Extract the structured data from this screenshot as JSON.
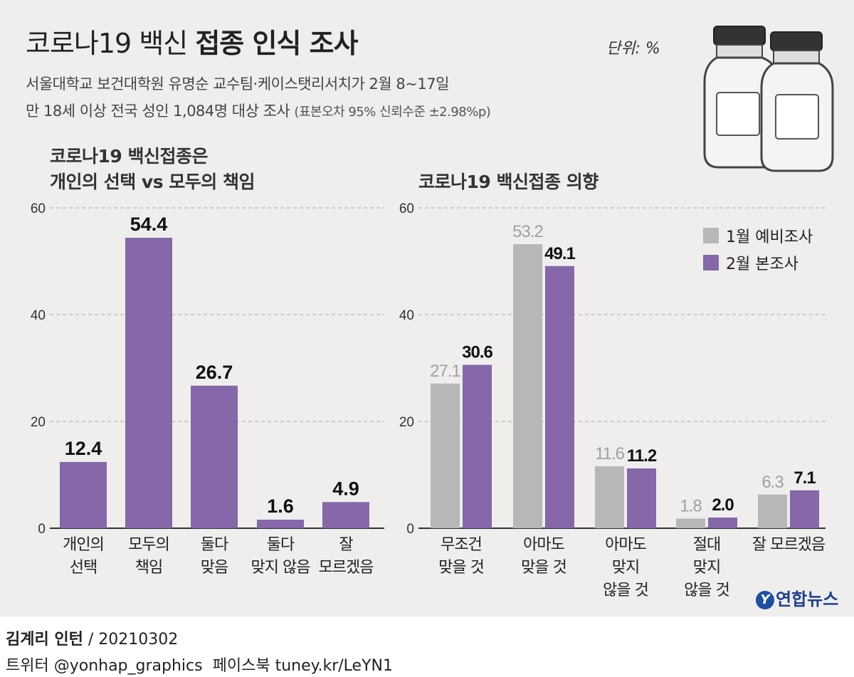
{
  "title": {
    "part1": "코로나19 백신",
    "part2": "접종 인식 조사"
  },
  "unit": "단위: %",
  "subtitle": {
    "line1": "서울대학교 보건대학원 유명순 교수팀·케이스탯리서치가 2월 8~17일",
    "line2": "만 18세 이상 전국 성인 1,084명 대상 조사",
    "line2_note": "(표본오차 95% 신뢰수준 ±2.98%p)"
  },
  "colors": {
    "purple": "#8567aa",
    "gray": "#b7b7b7",
    "gray_label": "#a0a0a0",
    "axis": "#333333",
    "grid": "#aaaaaa"
  },
  "chart_data": [
    {
      "type": "bar",
      "title": [
        "코로나19 백신접종은",
        "개인의 선택 vs 모두의 책임"
      ],
      "categories": [
        [
          "개인의",
          "선택"
        ],
        [
          "모두의",
          "책임"
        ],
        [
          "둘다",
          "맞음"
        ],
        [
          "둘다",
          "맞지 않음"
        ],
        [
          "잘",
          "모르겠음"
        ]
      ],
      "values": [
        12.4,
        54.4,
        26.7,
        1.6,
        4.9
      ],
      "labels": [
        "12.4",
        "54.4",
        "26.7",
        "1.6",
        "4.9"
      ],
      "ylim": [
        0,
        60
      ],
      "yticks": [
        0,
        20,
        40,
        60
      ],
      "grid": true
    },
    {
      "type": "bar",
      "title": [
        "코로나19 백신접종 의향"
      ],
      "categories": [
        [
          "무조건",
          "맞을 것"
        ],
        [
          "아마도",
          "맞을 것"
        ],
        [
          "아마도",
          "맞지",
          "않을 것"
        ],
        [
          "절대",
          "맞지",
          "않을 것"
        ],
        [
          "잘 모르겠음"
        ]
      ],
      "series": [
        {
          "name": "1월 예비조사",
          "values": [
            27.1,
            53.2,
            11.6,
            1.8,
            6.3
          ],
          "labels": [
            "27.1",
            "53.2",
            "11.6",
            "1.8",
            "6.3"
          ]
        },
        {
          "name": "2월 본조사",
          "values": [
            30.6,
            49.1,
            11.2,
            2.0,
            7.1
          ],
          "labels": [
            "30.6",
            "49.1",
            "11.2",
            "2.0",
            "7.1"
          ]
        }
      ],
      "ylim": [
        0,
        60
      ],
      "yticks": [
        0,
        20,
        40,
        60
      ],
      "grid": true,
      "legend": "top-right"
    }
  ],
  "footer": {
    "author": "김계리 인턴",
    "date": " / 20210302",
    "twitter": "트위터 @yonhap_graphics",
    "facebook": "페이스북 tuney.kr/LeYN1"
  },
  "logo": {
    "mark": "Y",
    "text": "연합뉴스"
  }
}
